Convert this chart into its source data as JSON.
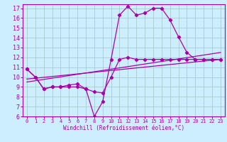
{
  "xlabel": "Windchill (Refroidissement éolien,°C)",
  "bg_color": "#cceeff",
  "grid_color": "#aacccc",
  "line_color": "#aa00aa",
  "spine_color": "#aa00aa",
  "xlim": [
    -0.5,
    23.5
  ],
  "ylim": [
    6,
    17.4
  ],
  "xticks": [
    0,
    1,
    2,
    3,
    4,
    5,
    6,
    7,
    8,
    9,
    10,
    11,
    12,
    13,
    14,
    15,
    16,
    17,
    18,
    19,
    20,
    21,
    22,
    23
  ],
  "yticks": [
    6,
    7,
    8,
    9,
    10,
    11,
    12,
    13,
    14,
    15,
    16,
    17
  ],
  "line1_x": [
    0,
    1,
    2,
    3,
    4,
    5,
    6,
    7,
    8,
    9,
    10,
    11,
    12,
    13,
    14,
    15,
    16,
    17,
    18,
    19,
    20,
    21,
    22,
    23
  ],
  "line1_y": [
    10.8,
    10.0,
    8.8,
    9.0,
    9.0,
    9.0,
    9.0,
    8.8,
    6.0,
    7.5,
    11.8,
    16.3,
    17.2,
    16.3,
    16.5,
    17.0,
    17.0,
    15.8,
    14.1,
    12.5,
    11.8,
    11.8,
    11.8,
    11.8
  ],
  "line2_x": [
    0,
    1,
    2,
    3,
    4,
    5,
    6,
    7,
    8,
    9,
    10,
    11,
    12,
    13,
    14,
    15,
    16,
    17,
    18,
    19,
    20,
    21,
    22,
    23
  ],
  "line2_y": [
    10.8,
    10.0,
    8.8,
    9.0,
    9.0,
    9.2,
    9.3,
    8.8,
    8.5,
    8.4,
    10.0,
    11.8,
    12.0,
    11.8,
    11.8,
    11.8,
    11.8,
    11.8,
    11.8,
    11.8,
    11.8,
    11.8,
    11.8,
    11.8
  ],
  "trend1_x": [
    0,
    23
  ],
  "trend1_y": [
    9.5,
    12.5
  ],
  "trend2_x": [
    0,
    23
  ],
  "trend2_y": [
    9.8,
    11.8
  ]
}
